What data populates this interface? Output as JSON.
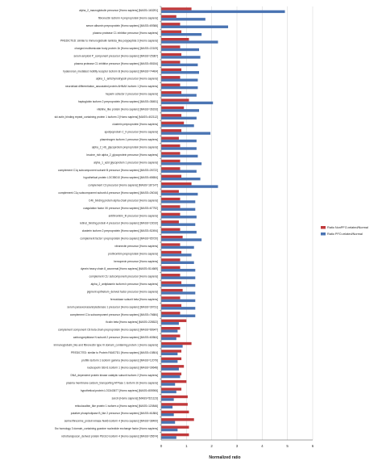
{
  "chart_data": {
    "type": "bar",
    "orientation": "horizontal",
    "xlabel": "Normalized ratio",
    "xlim": [
      0,
      6
    ],
    "xticks": [
      0,
      1,
      2,
      3,
      4,
      5,
      6
    ],
    "grid": true,
    "legend_position": "right",
    "categories": [
      "alpha_2_macroglobulin precursor [Homo sapiens] [MASS=163291]",
      "fibronectin isoform 4 preproprotein [Homo sapiens]",
      "serum albumin preproprotein [Homo sapiens] [MASS=69366]",
      "plasma protease C1 inhibitor precursor [Homo sapiens]",
      "PREDICTED: similar to immunoglobulin lambda_like polypeptide 3 [Homo sapiens]",
      "charged multivesicular body protein 1b [Homo sapiens] [MASS=22109]",
      "serum amyloid P_component precursor [Homo sapiens] [MASS=25387]",
      "plasma protease C1 inhibitor precursor [Homo sapiens] [MASS=55154]",
      "hyaluronan_mediated motility receptor isoform B [Homo sapiens] [MASS=74464]",
      "alpha_1_antichymotrypsin precursor [Homo sapiens]",
      "neuroblast differentiation_associated protein AHNAK isoform 1 [Homo sapiens]",
      "heparin cofactor 2 precursor [Homo sapiens]",
      "haptoglobin isoform 2 preproprotein [Homo sapiens] [MASS=38451]",
      "vitelline_like protein [Homo sapiens] [MASS=36193]",
      "ski actin_binding repeat_containing protein 1 isoform 2 [Homo sapiens] [MASS=402112]",
      "clusterin preproprotein [Homo sapiens]",
      "apolipoprotein C_II precursor [Homo sapiens]",
      "plasminogen isoform 1 precursor [Homo sapiens]",
      "alpha_2_HS_glycoprotein preproprotein [Homo sapiens]",
      "leucine_rich alpha_2_glycoprotein precursor [Homo sapiens]",
      "alpha_1_acid glycoprotein 1 precursor [Homo sapiens]",
      "complement C1q subcomponent subunit B precursor [Homo sapiens] [MASS=26722]",
      "hypothetical protein LOC55010 [Homo sapiens] [MASS=65654]",
      "complement C3 precursor [Homo sapiens] [MASS=187147]",
      "complement C1q subcomponent subunit A precursor [Homo sapiens] [MASS=26016]",
      "C4b_binding protein alpha chain precursor [Homo sapiens]",
      "coagulation factor XII precursor [Homo sapiens] [MASS=67792]",
      "antithrombin_III precursor [Homo sapiens]",
      "retinol_binding protein 4 precursor [Homo sapiens] [MASS=23010]",
      "clusterin isoform 2 preproprotein [Homo sapiens] [MASS=52494]",
      "complement factor I preproprotein [Homo sapiens] [MASS=65720]",
      "vitronectin precursor [Homo sapiens]",
      "prothrombin preproprotein [Homo sapiens]",
      "hemopexin precursor [Homo sapiens]",
      "dynein heavy chain 8_axonemal [Homo sapiens] [MASS=514669]",
      "complement C1r subcomponent precursor [Homo sapiens]",
      "alpha_2_antiplasmin isoform b precursor [Homo sapiens]",
      "pigment epithelium_derived factor precursor [Homo sapiens]",
      "ferroxidase subunit beta [Homo sapiens]",
      "serum paraoxonase/arylesterase 1 precursor [Homo sapiens] [MASS=39731]",
      "complement C1s subcomponent precursor [Homo sapiens] [MASS=76684]",
      "ficolin beta [Homo sapiens] [MASS=228522]",
      "complement component C8 beta chain preproprotein [Homo sapiens] [MASS=66947]",
      "carboxypeptidase N subunit 2 precursor [Homo sapiens] [MASS=60564]",
      "immunoglobulin_like and fibronectin type III domain_containing protein 1 [Homo sapiens]",
      "PREDICTED: similar to Protein FAM27D1 [Homo sapiens] [MASS=15804]",
      "profilin isoform 1 isoform gamma [Homo sapiens] [MASS=12079]",
      "nucleoporin SEH1 isoform 1 [Homo sapiens] [MASS=39648]",
      "DNA_dependent protein kinase catalytic subunit isoform 2 [Homo sapiens]",
      "plasma membrane calcium_transporting ATPase 1 isoform 1b [Homo sapiens]",
      "hypothetical protein LOC643677 [Homo sapiens] [MASS=805906]",
      "sarcin [Homo sapiens] [MASS=521123]",
      "reticulocalbin_like protein 1 isoform a [Homo sapiens] [MASS=120846]",
      "putative phospholipase B_like 2 precursor [Homo sapiens] [MASS=61884]",
      "serine/threonine_protein kinase Nek6 isoform 4 [Homo sapiens] [MASS=38400]",
      "Src homology 3 domain_containing guanine nucleotide exchange factor [Homo sapiens]",
      "retrotransposon_derived protein PEG10 isoform 4 [Homo sapiens] [MASS=35674]"
    ],
    "series": [
      {
        "name": "Ratio NonPFO-related/Normal",
        "color": "#c0393b",
        "values": [
          1.2,
          0.6,
          0.75,
          0.8,
          1.1,
          0.75,
          0.8,
          0.75,
          0.8,
          0.75,
          0.75,
          0.8,
          1.1,
          0.9,
          0.8,
          0.9,
          0.8,
          0.7,
          0.75,
          0.75,
          0.75,
          0.75,
          0.8,
          1.2,
          0.7,
          0.75,
          0.75,
          0.75,
          0.7,
          0.75,
          0.85,
          0.75,
          0.8,
          0.75,
          0.75,
          0.75,
          0.8,
          0.85,
          0.75,
          0.8,
          0.75,
          1.0,
          0.75,
          0.75,
          1.2,
          0.8,
          0.8,
          0.9,
          0.8,
          1.0,
          0.8,
          1.05,
          1.05,
          1.1,
          1.3,
          1.1,
          1.1
        ]
      },
      {
        "name": "Ratio PFO-related/Normal",
        "color": "#4a74b3",
        "values": [
          4.9,
          1.75,
          2.65,
          1.6,
          2.25,
          1.5,
          1.55,
          1.45,
          1.5,
          1.45,
          1.45,
          1.4,
          2.05,
          1.5,
          1.4,
          1.3,
          1.95,
          1.4,
          1.4,
          1.45,
          1.6,
          1.4,
          1.55,
          2.25,
          1.45,
          1.35,
          1.35,
          1.4,
          1.35,
          1.4,
          1.6,
          1.3,
          1.2,
          1.3,
          1.35,
          1.35,
          1.35,
          1.35,
          1.35,
          1.35,
          1.35,
          0.7,
          0.65,
          0.6,
          0.85,
          0.65,
          0.65,
          0.7,
          0.75,
          0.55,
          0.6,
          0.5,
          0.45,
          0.5,
          0.55,
          0.65,
          0.6
        ]
      }
    ]
  }
}
